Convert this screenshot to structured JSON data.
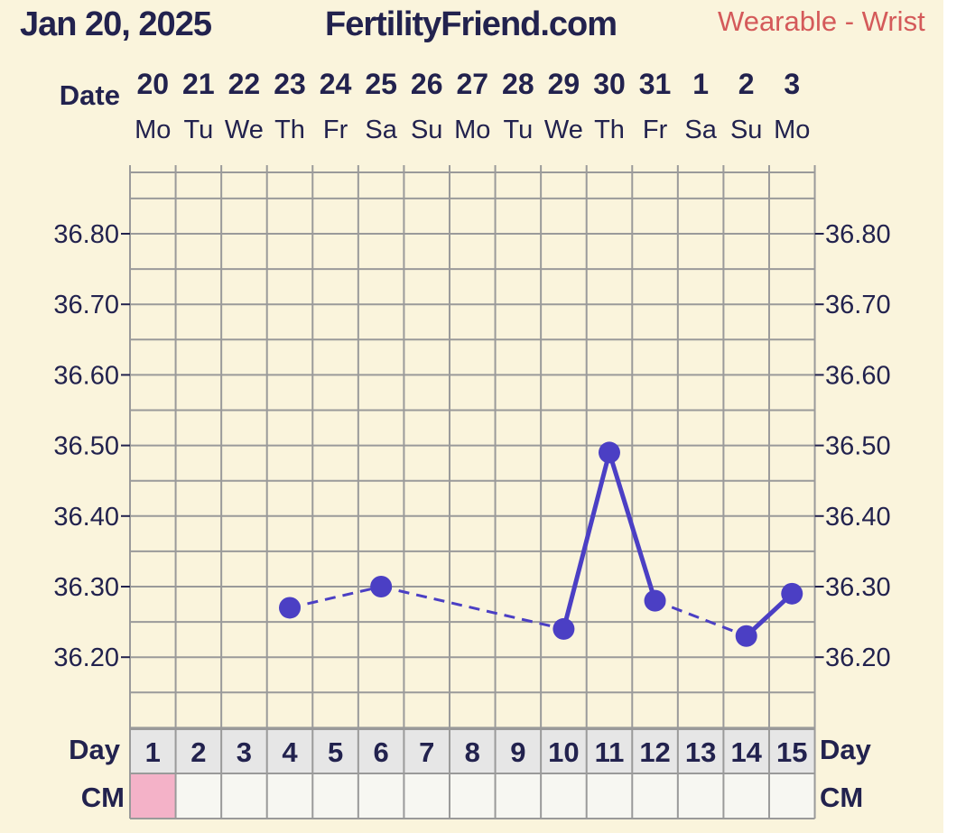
{
  "header": {
    "chart_date": "Jan 20, 2025",
    "site": "FertilityFriend.com",
    "source": "Wearable - Wrist"
  },
  "labels": {
    "date_row": "Date",
    "day_row": "Day",
    "cm_row": "CM"
  },
  "colors": {
    "background": "#faf4dc",
    "grid": "#9a9a9a",
    "temp_line": "#4b3fc4",
    "cm_menstrual": "#f4b2c8"
  },
  "chart_data": {
    "type": "line",
    "dates": [
      "20",
      "21",
      "22",
      "23",
      "24",
      "25",
      "26",
      "27",
      "28",
      "29",
      "30",
      "31",
      "1",
      "2",
      "3"
    ],
    "weekdays": [
      "Mo",
      "Tu",
      "We",
      "Th",
      "Fr",
      "Sa",
      "Su",
      "Mo",
      "Tu",
      "We",
      "Th",
      "Fr",
      "Sa",
      "Su",
      "Mo"
    ],
    "cycle_days": [
      "1",
      "2",
      "3",
      "4",
      "5",
      "6",
      "7",
      "8",
      "9",
      "10",
      "11",
      "12",
      "13",
      "14",
      "15"
    ],
    "y_ticks": [
      "36.20",
      "36.30",
      "36.40",
      "36.50",
      "36.60",
      "36.70",
      "36.80"
    ],
    "ylim": [
      36.1,
      36.9
    ],
    "temps": [
      null,
      null,
      null,
      36.27,
      null,
      36.3,
      null,
      null,
      null,
      36.24,
      36.49,
      36.28,
      null,
      36.23,
      36.29
    ],
    "cm": [
      "menstrual",
      "",
      "",
      "",
      "",
      "",
      "",
      "",
      "",
      "",
      "",
      "",
      "",
      "",
      ""
    ],
    "grid": true
  }
}
